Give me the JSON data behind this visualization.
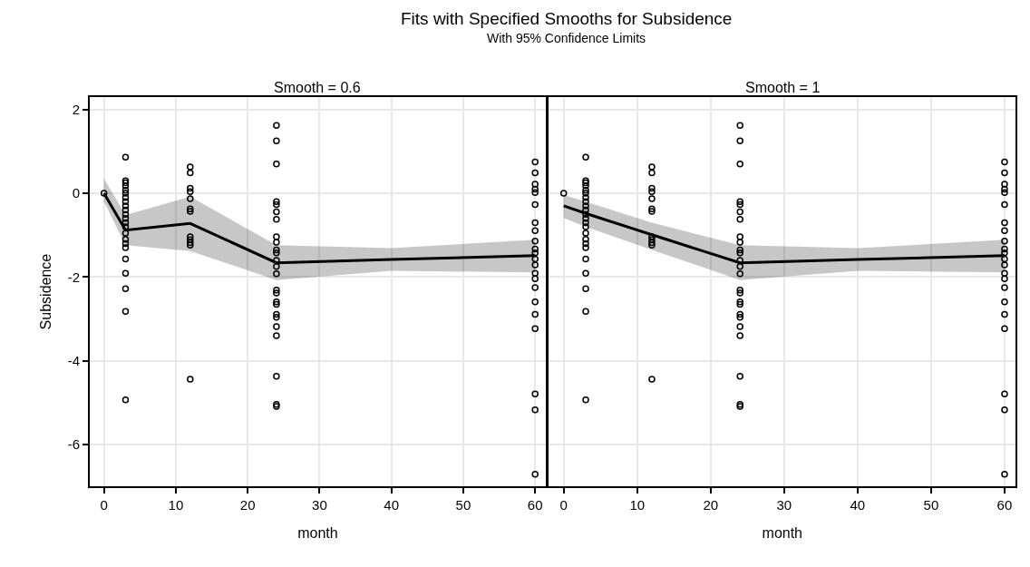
{
  "chart_data": [
    {
      "type": "scatter",
      "title": "Fits with Specified Smooths for Subsidence",
      "subtitle": "With 95% Confidence Limits",
      "annotations": [
        "Smooth = 0.6"
      ],
      "xlabel": "month",
      "ylabel": "Subsidence",
      "xlim": [
        -2,
        61.5
      ],
      "ylim": [
        -7,
        2.3
      ],
      "xticks": [
        0,
        10,
        20,
        30,
        40,
        50,
        60
      ],
      "yticks": [
        -6,
        -4,
        -2,
        0,
        2
      ],
      "grid": true,
      "marker": "circle",
      "series": [
        {
          "color": "#000000",
          "x": [
            0,
            3,
            3,
            3,
            3,
            3,
            3,
            3,
            3,
            3,
            3,
            3,
            3,
            3,
            3,
            3,
            3,
            3,
            3,
            3,
            3,
            3,
            3,
            3,
            12,
            12,
            12,
            12,
            12,
            12,
            12,
            12,
            12,
            12,
            12,
            12,
            24,
            24,
            24,
            24,
            24,
            24,
            24,
            24,
            24,
            24,
            24,
            24,
            24,
            24,
            24,
            24,
            24,
            24,
            24,
            24,
            24,
            24,
            24,
            24,
            24,
            60,
            60,
            60,
            60,
            60,
            60,
            60,
            60,
            60,
            60,
            60,
            60,
            60,
            60,
            60,
            60,
            60,
            60,
            60,
            60,
            60,
            60
          ],
          "values": [
            0,
            0.86,
            0.3,
            0.25,
            0.18,
            0.07,
            0,
            -0.1,
            -0.2,
            -0.3,
            -0.4,
            -0.5,
            -0.6,
            -0.7,
            -0.8,
            -0.95,
            -1.1,
            -1.2,
            -1.3,
            -1.57,
            -1.91,
            -2.28,
            -2.82,
            -4.93,
            0.63,
            0.49,
            0.12,
            0.04,
            -0.13,
            -0.37,
            -0.43,
            -1.04,
            -1.11,
            -1.18,
            -1.24,
            -4.44,
            1.62,
            1.25,
            0.7,
            -0.2,
            -0.27,
            -0.44,
            -0.62,
            -1.04,
            -1.17,
            -1.35,
            -1.42,
            -1.6,
            -1.75,
            -1.92,
            -2.31,
            -2.38,
            -2.59,
            -2.65,
            -2.89,
            -2.96,
            -3.18,
            -3.4,
            -4.37,
            -5.04,
            -5.09,
            0.75,
            0.49,
            0.22,
            0.1,
            0.02,
            -0.27,
            -0.7,
            -0.89,
            -1.14,
            -1.33,
            -1.42,
            -1.57,
            -1.71,
            -1.91,
            -2.04,
            -2.25,
            -2.59,
            -2.89,
            -3.23,
            -4.79,
            -5.17,
            -6.71
          ]
        },
        {
          "type": "line",
          "color": "#000000",
          "x": [
            0,
            3,
            12,
            24,
            40,
            60
          ],
          "values": [
            0,
            -0.88,
            -0.72,
            -1.66,
            -1.58,
            -1.49
          ],
          "lower": [
            -0.2,
            -1.24,
            -1.38,
            -2.07,
            -1.85,
            -1.89
          ],
          "upper": [
            0.35,
            -0.52,
            -0.08,
            -1.24,
            -1.31,
            -1.11
          ],
          "marker": "none",
          "line_style": "solid"
        }
      ]
    },
    {
      "type": "scatter",
      "annotations": [
        "Smooth = 1"
      ],
      "xlabel": "month",
      "xlim": [
        -2,
        61.5
      ],
      "ylim": [
        -7,
        2.3
      ],
      "xticks": [
        0,
        10,
        20,
        30,
        40,
        50,
        60
      ],
      "yticks": [
        -6,
        -4,
        -2,
        0,
        2
      ],
      "tick_labels": "x",
      "grid": true,
      "marker": "circle",
      "series": [
        {
          "color": "#000000",
          "x": [
            0,
            3,
            3,
            3,
            3,
            3,
            3,
            3,
            3,
            3,
            3,
            3,
            3,
            3,
            3,
            3,
            3,
            3,
            3,
            3,
            3,
            3,
            3,
            3,
            12,
            12,
            12,
            12,
            12,
            12,
            12,
            12,
            12,
            12,
            12,
            12,
            24,
            24,
            24,
            24,
            24,
            24,
            24,
            24,
            24,
            24,
            24,
            24,
            24,
            24,
            24,
            24,
            24,
            24,
            24,
            24,
            24,
            24,
            24,
            24,
            24,
            60,
            60,
            60,
            60,
            60,
            60,
            60,
            60,
            60,
            60,
            60,
            60,
            60,
            60,
            60,
            60,
            60,
            60,
            60,
            60,
            60,
            60
          ],
          "values": [
            0,
            0.86,
            0.3,
            0.25,
            0.18,
            0.07,
            0,
            -0.1,
            -0.2,
            -0.3,
            -0.4,
            -0.5,
            -0.6,
            -0.7,
            -0.8,
            -0.95,
            -1.1,
            -1.2,
            -1.3,
            -1.57,
            -1.91,
            -2.28,
            -2.82,
            -4.93,
            0.63,
            0.49,
            0.12,
            0.04,
            -0.13,
            -0.37,
            -0.43,
            -1.04,
            -1.11,
            -1.18,
            -1.24,
            -4.44,
            1.62,
            1.25,
            0.7,
            -0.2,
            -0.27,
            -0.44,
            -0.62,
            -1.04,
            -1.17,
            -1.35,
            -1.42,
            -1.6,
            -1.75,
            -1.92,
            -2.31,
            -2.38,
            -2.59,
            -2.65,
            -2.89,
            -2.96,
            -3.18,
            -3.4,
            -4.37,
            -5.04,
            -5.09,
            0.75,
            0.49,
            0.22,
            0.1,
            0.02,
            -0.27,
            -0.7,
            -0.89,
            -1.14,
            -1.33,
            -1.42,
            -1.57,
            -1.71,
            -1.91,
            -2.04,
            -2.25,
            -2.59,
            -2.89,
            -3.23,
            -4.79,
            -5.17,
            -6.71
          ]
        },
        {
          "type": "line",
          "color": "#000000",
          "x": [
            0,
            3,
            12,
            24,
            40,
            60
          ],
          "values": [
            -0.3,
            -0.48,
            -0.99,
            -1.66,
            -1.58,
            -1.49
          ],
          "lower": [
            -0.59,
            -0.8,
            -1.35,
            -2.07,
            -1.85,
            -1.89
          ],
          "upper": [
            -0.04,
            -0.2,
            -0.7,
            -1.24,
            -1.31,
            -1.11
          ],
          "marker": "none",
          "line_style": "solid"
        }
      ]
    }
  ]
}
